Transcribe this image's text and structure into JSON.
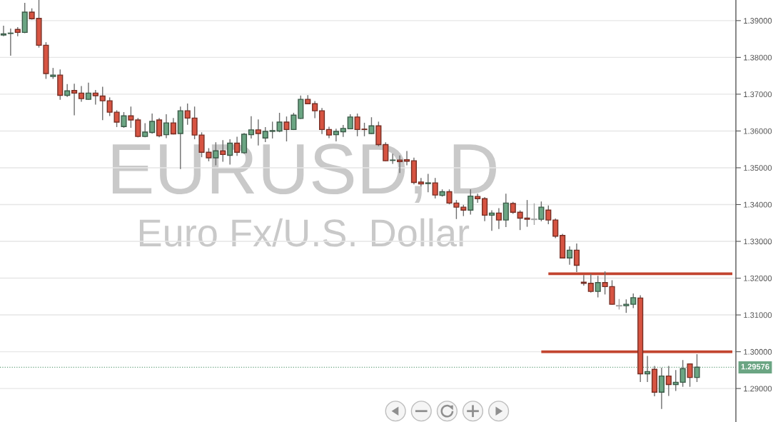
{
  "chart_data": {
    "type": "candlestick",
    "title": "EURUSD, D",
    "subtitle": "Euro Fx/U.S. Dollar",
    "categories": [
      null,
      null,
      null,
      null,
      null,
      null,
      null,
      null,
      null,
      null,
      null,
      null,
      null,
      null,
      null,
      null,
      null,
      null,
      null,
      null,
      null,
      null,
      null,
      null,
      null,
      null,
      null,
      null,
      null,
      null,
      null,
      null,
      null,
      null,
      null,
      null,
      null,
      null,
      null,
      null,
      null,
      null,
      null,
      null,
      null,
      null,
      null,
      null,
      null,
      null,
      null,
      null,
      null,
      null,
      null,
      null,
      null,
      null,
      null,
      null,
      null,
      null,
      null,
      null,
      null,
      null,
      null,
      null,
      null,
      null,
      null,
      null,
      null,
      null,
      null,
      null,
      null,
      null,
      null,
      null,
      null,
      null,
      null,
      null,
      null,
      null,
      null,
      null,
      null,
      null,
      null,
      null,
      null,
      null,
      null,
      null,
      null,
      null,
      null,
      null,
      null,
      null,
      null,
      null
    ],
    "ohlc": [
      [
        1.3861,
        1.3885,
        1.3859,
        1.3864
      ],
      [
        1.3865,
        1.3877,
        1.3806,
        1.3866
      ],
      [
        1.3876,
        1.3881,
        1.3859,
        1.3868
      ],
      [
        1.3868,
        1.3947,
        1.3867,
        1.3923
      ],
      [
        1.3923,
        1.3932,
        1.3904,
        1.3905
      ],
      [
        1.3906,
        1.3955,
        1.3828,
        1.3833
      ],
      [
        1.3833,
        1.384,
        1.3743,
        1.3756
      ],
      [
        1.3748,
        1.377,
        1.3743,
        1.3752
      ],
      [
        1.3752,
        1.3766,
        1.3686,
        1.3697
      ],
      [
        1.3697,
        1.3726,
        1.3694,
        1.3709
      ],
      [
        1.371,
        1.3727,
        1.3644,
        1.3703
      ],
      [
        1.3703,
        1.3721,
        1.3681,
        1.3688
      ],
      [
        1.3686,
        1.373,
        1.3686,
        1.3703
      ],
      [
        1.3703,
        1.371,
        1.3673,
        1.3696
      ],
      [
        1.3695,
        1.3719,
        1.3631,
        1.3682
      ],
      [
        1.3682,
        1.369,
        1.3642,
        1.3651
      ],
      [
        1.3651,
        1.3655,
        1.3612,
        1.3624
      ],
      [
        1.3612,
        1.365,
        1.361,
        1.3641
      ],
      [
        1.3641,
        1.3665,
        1.361,
        1.363
      ],
      [
        1.363,
        1.3634,
        1.3584,
        1.3585
      ],
      [
        1.3585,
        1.362,
        1.3584,
        1.3597
      ],
      [
        1.3596,
        1.3646,
        1.3594,
        1.3626
      ],
      [
        1.363,
        1.3634,
        1.3584,
        1.3587
      ],
      [
        1.359,
        1.3644,
        1.3582,
        1.3622
      ],
      [
        1.3622,
        1.3634,
        1.3592,
        1.3592
      ],
      [
        1.3593,
        1.3665,
        1.3498,
        1.3655
      ],
      [
        1.3655,
        1.3673,
        1.3618,
        1.3635
      ],
      [
        1.3635,
        1.3665,
        1.3579,
        1.3589
      ],
      [
        1.3589,
        1.3595,
        1.353,
        1.3542
      ],
      [
        1.3542,
        1.3552,
        1.3519,
        1.3527
      ],
      [
        1.3527,
        1.3568,
        1.3508,
        1.3546
      ],
      [
        1.3546,
        1.3574,
        1.3518,
        1.3536
      ],
      [
        1.3534,
        1.3576,
        1.351,
        1.3567
      ],
      [
        1.3567,
        1.3583,
        1.3534,
        1.3542
      ],
      [
        1.3541,
        1.3593,
        1.3539,
        1.3591
      ],
      [
        1.359,
        1.3639,
        1.3581,
        1.3603
      ],
      [
        1.3603,
        1.363,
        1.3562,
        1.3593
      ],
      [
        1.3581,
        1.3609,
        1.3571,
        1.3599
      ],
      [
        1.3599,
        1.3624,
        1.3581,
        1.3601
      ],
      [
        1.36,
        1.3648,
        1.3598,
        1.3624
      ],
      [
        1.3624,
        1.3638,
        1.3573,
        1.3604
      ],
      [
        1.3604,
        1.3648,
        1.3604,
        1.3643
      ],
      [
        1.3634,
        1.3695,
        1.3634,
        1.3686
      ],
      [
        1.3686,
        1.3696,
        1.3674,
        1.3674
      ],
      [
        1.3674,
        1.368,
        1.3636,
        1.3655
      ],
      [
        1.3655,
        1.3661,
        1.3593,
        1.3604
      ],
      [
        1.3604,
        1.361,
        1.3582,
        1.3589
      ],
      [
        1.359,
        1.3605,
        1.3573,
        1.3599
      ],
      [
        1.3598,
        1.3615,
        1.3585,
        1.3607
      ],
      [
        1.3606,
        1.3644,
        1.3606,
        1.3638
      ],
      [
        1.3638,
        1.3646,
        1.3587,
        1.3604
      ],
      [
        1.3605,
        1.3621,
        1.3587,
        1.3604
      ],
      [
        1.3593,
        1.3636,
        1.3593,
        1.3614
      ],
      [
        1.3614,
        1.3624,
        1.356,
        1.3563
      ],
      [
        1.3563,
        1.3568,
        1.3519,
        1.3519
      ],
      [
        1.352,
        1.3537,
        1.3512,
        1.3521
      ],
      [
        1.3521,
        1.3532,
        1.3487,
        1.3517
      ],
      [
        1.3522,
        1.3544,
        1.3508,
        1.3518
      ],
      [
        1.3519,
        1.3526,
        1.3456,
        1.346
      ],
      [
        1.3461,
        1.3471,
        1.3451,
        1.3456
      ],
      [
        1.3457,
        1.3482,
        1.3435,
        1.3459
      ],
      [
        1.3459,
        1.3471,
        1.3418,
        1.3426
      ],
      [
        1.3425,
        1.344,
        1.3423,
        1.3435
      ],
      [
        1.3435,
        1.344,
        1.3402,
        1.3404
      ],
      [
        1.3404,
        1.3411,
        1.3362,
        1.3393
      ],
      [
        1.3393,
        1.3398,
        1.337,
        1.3385
      ],
      [
        1.3385,
        1.344,
        1.3374,
        1.3423
      ],
      [
        1.3422,
        1.3428,
        1.3406,
        1.3416
      ],
      [
        1.3416,
        1.3419,
        1.3356,
        1.3371
      ],
      [
        1.3371,
        1.3383,
        1.333,
        1.3377
      ],
      [
        1.3377,
        1.3389,
        1.3335,
        1.3358
      ],
      [
        1.3358,
        1.3428,
        1.334,
        1.3404
      ],
      [
        1.3403,
        1.3406,
        1.3376,
        1.3379
      ],
      [
        1.3379,
        1.3383,
        1.3332,
        1.3363
      ],
      [
        1.3363,
        1.3411,
        1.3341,
        1.336
      ],
      [
        1.336,
        1.3402,
        1.3346,
        1.336
      ],
      [
        1.336,
        1.3407,
        1.3356,
        1.3393
      ],
      [
        1.3385,
        1.3396,
        1.3348,
        1.3358
      ],
      [
        1.3358,
        1.3361,
        1.331,
        1.3314
      ],
      [
        1.3316,
        1.3319,
        1.3255,
        1.3255
      ],
      [
        1.3255,
        1.3285,
        1.3238,
        1.3276
      ],
      [
        1.3276,
        1.3293,
        1.3218,
        1.3235
      ],
      [
        1.3189,
        1.3207,
        1.3181,
        1.3186
      ],
      [
        1.3186,
        1.321,
        1.3162,
        1.3164
      ],
      [
        1.3164,
        1.3205,
        1.3149,
        1.3188
      ],
      [
        1.3188,
        1.3217,
        1.3157,
        1.3177
      ],
      [
        1.3177,
        1.3193,
        1.3129,
        1.3129
      ],
      [
        1.3125,
        1.3142,
        1.3116,
        1.3125
      ],
      [
        1.3125,
        1.3141,
        1.3107,
        1.3129
      ],
      [
        1.3129,
        1.3157,
        1.312,
        1.3147
      ],
      [
        1.3146,
        1.3152,
        1.2919,
        1.294
      ],
      [
        1.294,
        1.2987,
        1.2919,
        1.2946
      ],
      [
        1.2952,
        1.296,
        1.288,
        1.289
      ],
      [
        1.289,
        1.2955,
        1.2846,
        1.2934
      ],
      [
        1.2934,
        1.296,
        1.2881,
        1.2911
      ],
      [
        1.2911,
        1.2949,
        1.2895,
        1.2917
      ],
      [
        1.2917,
        1.2976,
        1.2906,
        1.2954
      ],
      [
        1.2967,
        1.2967,
        1.2906,
        1.293
      ],
      [
        1.293,
        1.2992,
        1.2919,
        1.2958
      ],
      null,
      null,
      null,
      null,
      null
    ],
    "colors": [
      "#6ba583",
      "#6ba583",
      "#d75442",
      "#6ba583",
      "#d75442",
      "#d75442",
      "#d75442",
      "#6ba583",
      "#d75442",
      "#6ba583",
      "#d75442",
      "#d75442",
      "#6ba583",
      "#d75442",
      "#d75442",
      "#d75442",
      "#d75442",
      "#6ba583",
      "#d75442",
      "#d75442",
      "#6ba583",
      "#6ba583",
      "#d75442",
      "#6ba583",
      "#d75442",
      "#6ba583",
      "#d75442",
      "#d75442",
      "#d75442",
      "#d75442",
      "#6ba583",
      "#d75442",
      "#6ba583",
      "#d75442",
      "#6ba583",
      "#6ba583",
      "#d75442",
      "#6ba583",
      "#6ba583",
      "#6ba583",
      "#d75442",
      "#6ba583",
      "#6ba583",
      "#d75442",
      "#d75442",
      "#d75442",
      "#d75442",
      "#6ba583",
      "#6ba583",
      "#6ba583",
      "#d75442",
      "#d75442",
      "#6ba583",
      "#d75442",
      "#d75442",
      "#6ba583",
      "#d75442",
      "#d75442",
      "#d75442",
      "#d75442",
      "#6ba583",
      "#d75442",
      "#6ba583",
      "#d75442",
      "#d75442",
      "#d75442",
      "#6ba583",
      "#d75442",
      "#d75442",
      "#6ba583",
      "#d75442",
      "#6ba583",
      "#d75442",
      "#d75442",
      "#d75442",
      "#a6a6a6",
      "#6ba583",
      "#d75442",
      "#d75442",
      "#d75442",
      "#6ba583",
      "#d75442",
      "#d75442",
      "#d75442",
      "#6ba583",
      "#d75442",
      "#d75442",
      "#a6a6a6",
      "#6ba583",
      "#6ba583",
      "#d75442",
      "#6ba583",
      "#d75442",
      "#6ba583",
      "#d75442",
      "#6ba583",
      "#6ba583",
      "#d75442",
      "#6ba583",
      null,
      null,
      null,
      null,
      null
    ],
    "series": [
      {
        "type": "line",
        "color": "#c2442f",
        "values": [
          null,
          null,
          null,
          null,
          null,
          null,
          null,
          null,
          null,
          null,
          null,
          null,
          null,
          null,
          null,
          null,
          null,
          null,
          null,
          null,
          null,
          null,
          null,
          null,
          null,
          null,
          null,
          null,
          null,
          null,
          null,
          null,
          null,
          null,
          null,
          null,
          null,
          null,
          null,
          null,
          null,
          null,
          null,
          null,
          null,
          null,
          null,
          null,
          null,
          null,
          null,
          null,
          null,
          null,
          null,
          null,
          null,
          null,
          null,
          null,
          null,
          null,
          null,
          null,
          null,
          null,
          null,
          null,
          null,
          null,
          null,
          null,
          null,
          null,
          null,
          null,
          null,
          1.3212,
          1.3212,
          1.3212,
          1.3212,
          1.3212,
          1.3212,
          1.3212,
          1.3212,
          1.3212,
          1.3212,
          1.3212,
          1.3212,
          1.3212,
          1.3212,
          1.3212,
          1.3212,
          1.3212,
          1.3212,
          1.3212,
          1.3212,
          1.3212,
          1.3212,
          1.3212,
          1.3212,
          1.3212,
          1.3212,
          1.3212
        ]
      },
      {
        "type": "line",
        "color": "#c2442f",
        "values": [
          null,
          null,
          null,
          null,
          null,
          null,
          null,
          null,
          null,
          null,
          null,
          null,
          null,
          null,
          null,
          null,
          null,
          null,
          null,
          null,
          null,
          null,
          null,
          null,
          null,
          null,
          null,
          null,
          null,
          null,
          null,
          null,
          null,
          null,
          null,
          null,
          null,
          null,
          null,
          null,
          null,
          null,
          null,
          null,
          null,
          null,
          null,
          null,
          null,
          null,
          null,
          null,
          null,
          null,
          null,
          null,
          null,
          null,
          null,
          null,
          null,
          null,
          null,
          null,
          null,
          null,
          null,
          null,
          null,
          null,
          null,
          null,
          null,
          null,
          null,
          null,
          1.3,
          1.3,
          1.3,
          1.3,
          1.3,
          1.3,
          1.3,
          1.3,
          1.3,
          1.3,
          1.3,
          1.3,
          1.3,
          1.3,
          1.3,
          1.3,
          1.3,
          1.3,
          1.3,
          1.3,
          1.3,
          1.3,
          1.3,
          1.3,
          1.3,
          1.3,
          1.3,
          1.3
        ]
      }
    ],
    "ref_lines": [
      {
        "axis": "y",
        "value": 1.29576,
        "label": "1.29576",
        "color": "#6ba583",
        "line_style": "dotted"
      }
    ],
    "ylim": [
      1.2809,
      1.3956
    ],
    "yticks": [
      {
        "value": 1.29,
        "label": "1.29000"
      },
      {
        "value": 1.3,
        "label": "1.30000"
      },
      {
        "value": 1.31,
        "label": "1.31000"
      },
      {
        "value": 1.32,
        "label": "1.32000"
      },
      {
        "value": 1.33,
        "label": "1.33000"
      },
      {
        "value": 1.34,
        "label": "1.34000"
      },
      {
        "value": 1.35,
        "label": "1.35000"
      },
      {
        "value": 1.36,
        "label": "1.36000"
      },
      {
        "value": 1.37,
        "label": "1.37000"
      },
      {
        "value": 1.38,
        "label": "1.38000"
      },
      {
        "value": 1.39,
        "label": "1.39000"
      }
    ],
    "grid": "y",
    "tick_labels": "y"
  }
}
